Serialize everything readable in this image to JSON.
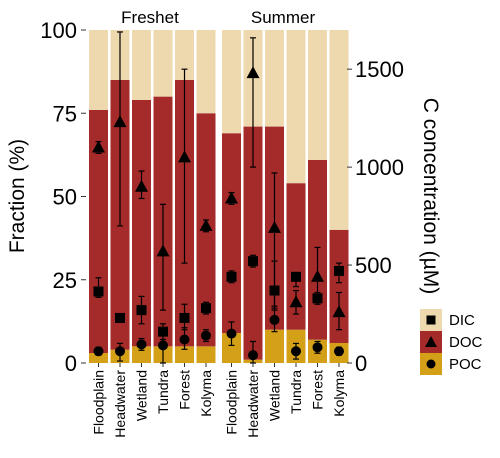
{
  "chart_data": {
    "type": "bar",
    "stacked": true,
    "panels": [
      {
        "title": "Freshet",
        "panel_index": 0
      },
      {
        "title": "Summer",
        "panel_index": 1
      }
    ],
    "categories": [
      "Floodplain",
      "Headwater",
      "Wetland",
      "Tundra",
      "Forest",
      "Kolyma"
    ],
    "ylabel_left": "Fraction (%)",
    "ylabel_right": "C concentration (µM)",
    "left_axis": {
      "ylim": [
        0,
        100
      ],
      "ticks": [
        0,
        25,
        50,
        75,
        100
      ],
      "tick_labels": [
        "0",
        "25",
        "50",
        "75",
        "100"
      ]
    },
    "right_axis": {
      "ylim": [
        0,
        1700
      ],
      "ticks": [
        0,
        500,
        1000,
        1500
      ],
      "tick_labels": [
        "0",
        "500",
        "1000",
        "1500"
      ]
    },
    "series": [
      {
        "name": "POC",
        "color": "#D4A017",
        "freshet": [
          3,
          4,
          5,
          5,
          5,
          5
        ],
        "summer": [
          9,
          1,
          10,
          10,
          7,
          6
        ]
      },
      {
        "name": "DOC",
        "color": "#A52A2A",
        "freshet": [
          73,
          81,
          74,
          75,
          80,
          70
        ],
        "summer": [
          60,
          70,
          61,
          44,
          54,
          34
        ]
      },
      {
        "name": "DIC",
        "color": "#EED9AE",
        "freshet": [
          24,
          15,
          21,
          20,
          15,
          25
        ],
        "summer": [
          31,
          29,
          29,
          46,
          39,
          60
        ]
      }
    ],
    "concentration_points": {
      "freshet": {
        "DIC": {
          "values": [
            365,
            230,
            270,
            160,
            230,
            280
          ],
          "err_low": [
            30,
            10,
            70,
            40,
            60,
            30
          ],
          "err_high": [
            70,
            10,
            70,
            20,
            70,
            30
          ]
        },
        "DOC": {
          "values": [
            1100,
            1230,
            900,
            570,
            1050,
            700
          ],
          "err_low": [
            30,
            530,
            60,
            300,
            540,
            30
          ],
          "err_high": [
            30,
            460,
            80,
            240,
            450,
            30
          ]
        },
        "POC": {
          "values": [
            60,
            60,
            95,
            90,
            120,
            140
          ],
          "err_low": [
            20,
            50,
            30,
            90,
            50,
            30
          ],
          "err_high": [
            20,
            40,
            30,
            110,
            60,
            30
          ]
        }
      },
      "summer": {
        "DIC": {
          "values": [
            440,
            520,
            370,
            440,
            330,
            470
          ],
          "err_low": [
            30,
            30,
            100,
            50,
            30,
            60
          ],
          "err_high": [
            30,
            30,
            150,
            20,
            30,
            40
          ]
        },
        "DOC": {
          "values": [
            840,
            1480,
            690,
            310,
            440,
            260
          ],
          "err_low": [
            30,
            480,
            400,
            60,
            120,
            90
          ],
          "err_high": [
            30,
            180,
            280,
            60,
            150,
            100
          ]
        },
        "POC": {
          "values": [
            150,
            40,
            220,
            60,
            80,
            60
          ],
          "err_low": [
            60,
            40,
            60,
            40,
            30,
            20
          ],
          "err_high": [
            60,
            70,
            60,
            40,
            30,
            20
          ]
        }
      }
    },
    "legend": {
      "position": "right",
      "items": [
        {
          "label": "DIC",
          "marker": "square",
          "color": "#EED9AE"
        },
        {
          "label": "DOC",
          "marker": "triangle",
          "color": "#A52A2A"
        },
        {
          "label": "POC",
          "marker": "circle",
          "color": "#D4A017"
        }
      ]
    },
    "grid": false
  }
}
